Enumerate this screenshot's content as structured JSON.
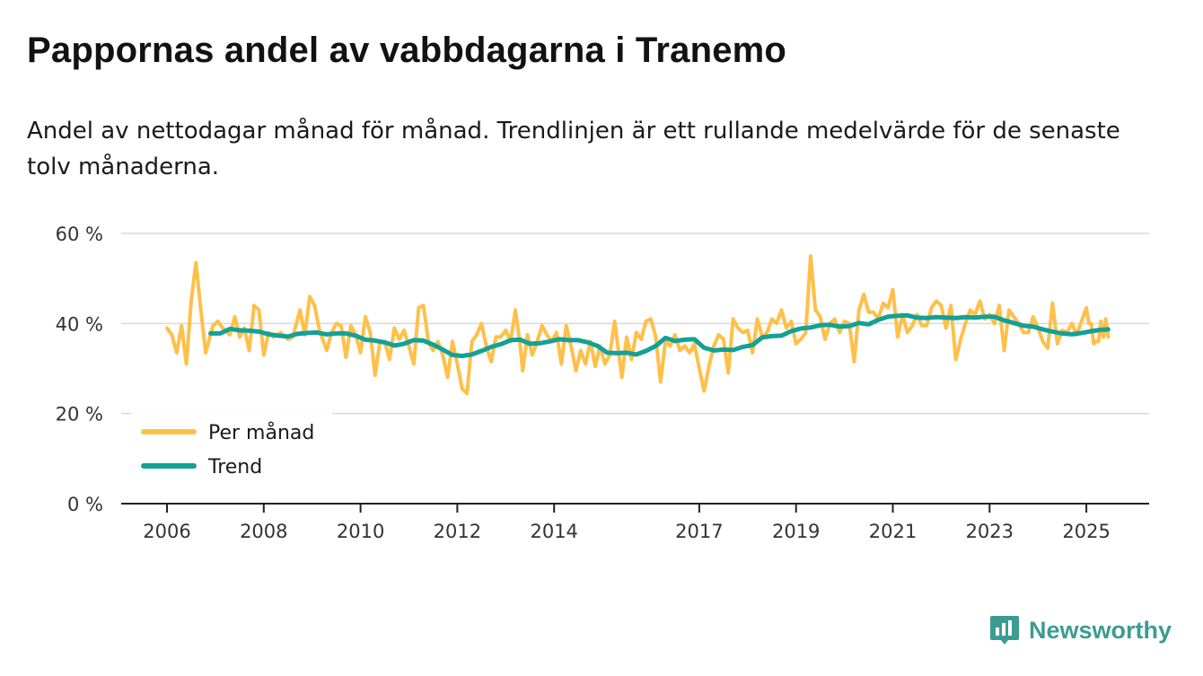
{
  "title": "Pappornas andel av vabbdagarna i Tranemo",
  "subtitle": "Andel av nettodagar månad för månad. Trendlinjen är ett rullande medelvärde för de senaste tolv månaderna.",
  "brand": {
    "name": "Newsworthy",
    "icon": "newsworthy-logo-icon",
    "color": "#3c9c92"
  },
  "colors": {
    "monthly": "#ffc04a",
    "trend": "#13a196",
    "grid": "#d9d9d9",
    "axis": "#222222"
  },
  "chart_data": {
    "type": "line",
    "title": "Pappornas andel av vabbdagarna i Tranemo",
    "xlabel": "",
    "ylabel": "",
    "xlim": [
      2005.95,
      2025.4
    ],
    "ylim": [
      0,
      60
    ],
    "y_ticks": [
      {
        "value": 0,
        "label": "0 %"
      },
      {
        "value": 20,
        "label": "20 %"
      },
      {
        "value": 40,
        "label": "40 %"
      },
      {
        "value": 60,
        "label": "60 %"
      }
    ],
    "x_ticks": [
      {
        "value": 2006,
        "label": "2006"
      },
      {
        "value": 2008,
        "label": "2008"
      },
      {
        "value": 2010,
        "label": "2010"
      },
      {
        "value": 2012,
        "label": "2012"
      },
      {
        "value": 2014,
        "label": "2014"
      },
      {
        "value": 2017,
        "label": "2017"
      },
      {
        "value": 2019,
        "label": "2019"
      },
      {
        "value": 2021,
        "label": "2021"
      },
      {
        "value": 2023,
        "label": "2023"
      },
      {
        "value": 2025,
        "label": "2025"
      }
    ],
    "grid": true,
    "legend_position": "bottom-left",
    "series": [
      {
        "name": "Per månad",
        "color": "#ffc04a",
        "points": [
          [
            2006.0,
            39
          ],
          [
            2006.1,
            37.5
          ],
          [
            2006.2,
            33.5
          ],
          [
            2006.3,
            39.5
          ],
          [
            2006.4,
            31
          ],
          [
            2006.5,
            45
          ],
          [
            2006.6,
            53.5
          ],
          [
            2006.7,
            43
          ],
          [
            2006.8,
            33.5
          ],
          [
            2006.95,
            39.5
          ],
          [
            2007.05,
            40.5
          ],
          [
            2007.15,
            39
          ],
          [
            2007.3,
            37.5
          ],
          [
            2007.4,
            41.5
          ],
          [
            2007.5,
            37
          ],
          [
            2007.6,
            39
          ],
          [
            2007.7,
            34
          ],
          [
            2007.8,
            44
          ],
          [
            2007.9,
            43
          ],
          [
            2008.0,
            33
          ],
          [
            2008.1,
            38
          ],
          [
            2008.2,
            37
          ],
          [
            2008.35,
            38
          ],
          [
            2008.5,
            36.5
          ],
          [
            2008.6,
            37
          ],
          [
            2008.75,
            43
          ],
          [
            2008.85,
            37.5
          ],
          [
            2008.95,
            46
          ],
          [
            2009.05,
            44
          ],
          [
            2009.15,
            38.5
          ],
          [
            2009.3,
            34
          ],
          [
            2009.4,
            38
          ],
          [
            2009.5,
            40
          ],
          [
            2009.6,
            39.5
          ],
          [
            2009.7,
            32.5
          ],
          [
            2009.8,
            39.5
          ],
          [
            2009.9,
            37.5
          ],
          [
            2010.0,
            33.5
          ],
          [
            2010.1,
            41.5
          ],
          [
            2010.2,
            38
          ],
          [
            2010.3,
            28.5
          ],
          [
            2010.4,
            36
          ],
          [
            2010.5,
            36
          ],
          [
            2010.6,
            32
          ],
          [
            2010.7,
            39
          ],
          [
            2010.8,
            36.5
          ],
          [
            2010.9,
            38.5
          ],
          [
            2011.0,
            35
          ],
          [
            2011.1,
            31
          ],
          [
            2011.2,
            43.5
          ],
          [
            2011.3,
            44
          ],
          [
            2011.4,
            36
          ],
          [
            2011.5,
            34
          ],
          [
            2011.6,
            36
          ],
          [
            2011.7,
            33
          ],
          [
            2011.8,
            28
          ],
          [
            2011.9,
            36
          ],
          [
            2012.0,
            31
          ],
          [
            2012.1,
            25.5
          ],
          [
            2012.2,
            24.5
          ],
          [
            2012.3,
            36
          ],
          [
            2012.4,
            37.5
          ],
          [
            2012.5,
            40
          ],
          [
            2012.6,
            35
          ],
          [
            2012.7,
            31.5
          ],
          [
            2012.8,
            37
          ],
          [
            2012.9,
            37
          ],
          [
            2013.0,
            38.5
          ],
          [
            2013.1,
            36
          ],
          [
            2013.2,
            43
          ],
          [
            2013.3,
            35
          ],
          [
            2013.35,
            29.5
          ],
          [
            2013.45,
            37.5
          ],
          [
            2013.55,
            33
          ],
          [
            2013.65,
            36
          ],
          [
            2013.75,
            39.5
          ],
          [
            2013.85,
            37.5
          ],
          [
            2013.95,
            36
          ],
          [
            2014.05,
            38
          ],
          [
            2014.15,
            31
          ],
          [
            2014.25,
            39.5
          ],
          [
            2014.35,
            35
          ],
          [
            2014.45,
            29.5
          ],
          [
            2014.55,
            34
          ],
          [
            2014.65,
            31
          ],
          [
            2014.75,
            36
          ],
          [
            2014.85,
            30.5
          ],
          [
            2014.95,
            35
          ],
          [
            2015.05,
            31
          ],
          [
            2015.15,
            33
          ],
          [
            2015.25,
            40.5
          ],
          [
            2015.4,
            28
          ],
          [
            2015.5,
            37
          ],
          [
            2015.6,
            32
          ],
          [
            2015.7,
            38
          ],
          [
            2015.8,
            36.5
          ],
          [
            2015.9,
            40.5
          ],
          [
            2016.0,
            41
          ],
          [
            2016.1,
            37
          ],
          [
            2016.2,
            27
          ],
          [
            2016.3,
            36
          ],
          [
            2016.4,
            35
          ],
          [
            2016.5,
            37.5
          ],
          [
            2016.6,
            34
          ],
          [
            2016.7,
            35
          ],
          [
            2016.8,
            33.5
          ],
          [
            2016.9,
            35.5
          ],
          [
            2017.0,
            30
          ],
          [
            2017.1,
            25
          ],
          [
            2017.2,
            30.5
          ],
          [
            2017.3,
            35
          ],
          [
            2017.4,
            37.5
          ],
          [
            2017.5,
            36.5
          ],
          [
            2017.6,
            29
          ],
          [
            2017.7,
            41
          ],
          [
            2017.8,
            39
          ],
          [
            2017.9,
            38
          ],
          [
            2018.0,
            38.5
          ],
          [
            2018.1,
            33.5
          ],
          [
            2018.2,
            41
          ],
          [
            2018.3,
            37
          ],
          [
            2018.4,
            38
          ],
          [
            2018.5,
            41
          ],
          [
            2018.6,
            40
          ],
          [
            2018.7,
            43
          ],
          [
            2018.8,
            39
          ],
          [
            2018.9,
            40.5
          ],
          [
            2019.0,
            35.5
          ],
          [
            2019.1,
            36.5
          ],
          [
            2019.2,
            38
          ],
          [
            2019.3,
            55
          ],
          [
            2019.4,
            43
          ],
          [
            2019.5,
            41.5
          ],
          [
            2019.6,
            36.5
          ],
          [
            2019.7,
            40
          ],
          [
            2019.8,
            41
          ],
          [
            2019.9,
            38
          ],
          [
            2020.0,
            40.5
          ],
          [
            2020.1,
            40
          ],
          [
            2020.2,
            31.5
          ],
          [
            2020.3,
            43
          ],
          [
            2020.4,
            46.5
          ],
          [
            2020.5,
            42.5
          ],
          [
            2020.6,
            42.5
          ],
          [
            2020.7,
            41
          ],
          [
            2020.8,
            44.5
          ],
          [
            2020.9,
            43.5
          ],
          [
            2021.0,
            47.5
          ],
          [
            2021.1,
            37
          ],
          [
            2021.2,
            42
          ],
          [
            2021.3,
            38
          ],
          [
            2021.4,
            39.5
          ],
          [
            2021.5,
            42
          ],
          [
            2021.6,
            39.5
          ],
          [
            2021.7,
            39.5
          ],
          [
            2021.8,
            43.5
          ],
          [
            2021.9,
            45
          ],
          [
            2022.0,
            44
          ],
          [
            2022.1,
            39
          ],
          [
            2022.2,
            44
          ],
          [
            2022.3,
            32
          ],
          [
            2022.4,
            36.5
          ],
          [
            2022.5,
            40
          ],
          [
            2022.6,
            43
          ],
          [
            2022.7,
            42
          ],
          [
            2022.8,
            45
          ],
          [
            2022.9,
            41
          ],
          [
            2023.0,
            42
          ],
          [
            2023.1,
            40
          ],
          [
            2023.2,
            44
          ],
          [
            2023.3,
            34
          ],
          [
            2023.4,
            43
          ],
          [
            2023.5,
            41.5
          ],
          [
            2023.6,
            40
          ],
          [
            2023.7,
            38
          ],
          [
            2023.8,
            38
          ],
          [
            2023.9,
            41.5
          ],
          [
            2024.0,
            39
          ],
          [
            2024.1,
            36
          ],
          [
            2024.2,
            34.5
          ],
          [
            2024.3,
            44.5
          ],
          [
            2024.4,
            35.5
          ],
          [
            2024.5,
            38.5
          ],
          [
            2024.6,
            38
          ],
          [
            2024.7,
            40
          ],
          [
            2024.8,
            37.5
          ],
          [
            2024.9,
            40.5
          ],
          [
            2025.0,
            43.5
          ],
          [
            2025.05,
            40
          ],
          [
            2025.1,
            40
          ],
          [
            2025.15,
            35.5
          ],
          [
            2025.2,
            36
          ],
          [
            2025.25,
            36
          ],
          [
            2025.3,
            40.5
          ],
          [
            2025.35,
            37
          ],
          [
            2025.4,
            41
          ],
          [
            2025.45,
            37
          ]
        ]
      },
      {
        "name": "Trend",
        "color": "#13a196",
        "points": [
          [
            2006.9,
            37.8
          ],
          [
            2007.1,
            37.8
          ],
          [
            2007.3,
            38.8
          ],
          [
            2007.5,
            38.5
          ],
          [
            2007.7,
            38.4
          ],
          [
            2007.9,
            38.2
          ],
          [
            2008.1,
            37.6
          ],
          [
            2008.3,
            37.3
          ],
          [
            2008.5,
            37.1
          ],
          [
            2008.7,
            37.7
          ],
          [
            2008.9,
            37.9
          ],
          [
            2009.1,
            38
          ],
          [
            2009.3,
            37.6
          ],
          [
            2009.5,
            37.8
          ],
          [
            2009.7,
            37.8
          ],
          [
            2009.9,
            37.3
          ],
          [
            2010.1,
            36.4
          ],
          [
            2010.3,
            36.2
          ],
          [
            2010.5,
            35.8
          ],
          [
            2010.7,
            35.1
          ],
          [
            2010.9,
            35.5
          ],
          [
            2011.1,
            36.3
          ],
          [
            2011.3,
            36.2
          ],
          [
            2011.5,
            35.3
          ],
          [
            2011.7,
            34.2
          ],
          [
            2011.9,
            33
          ],
          [
            2012.1,
            32.8
          ],
          [
            2012.3,
            33.1
          ],
          [
            2012.5,
            33.9
          ],
          [
            2012.7,
            34.8
          ],
          [
            2012.9,
            35.4
          ],
          [
            2013.1,
            36.3
          ],
          [
            2013.3,
            36.4
          ],
          [
            2013.5,
            35.5
          ],
          [
            2013.7,
            35.6
          ],
          [
            2013.9,
            36
          ],
          [
            2014.1,
            36.5
          ],
          [
            2014.3,
            36.3
          ],
          [
            2014.5,
            36.3
          ],
          [
            2014.7,
            35.8
          ],
          [
            2014.9,
            35
          ],
          [
            2015.1,
            33.5
          ],
          [
            2015.3,
            33.4
          ],
          [
            2015.5,
            33.5
          ],
          [
            2015.7,
            33.1
          ],
          [
            2015.9,
            33.9
          ],
          [
            2016.1,
            35
          ],
          [
            2016.3,
            36.8
          ],
          [
            2016.5,
            36.1
          ],
          [
            2016.7,
            36.4
          ],
          [
            2016.9,
            36.5
          ],
          [
            2017.1,
            34.6
          ],
          [
            2017.3,
            34
          ],
          [
            2017.5,
            34.2
          ],
          [
            2017.7,
            34.1
          ],
          [
            2017.9,
            34.8
          ],
          [
            2018.1,
            35.2
          ],
          [
            2018.3,
            36.9
          ],
          [
            2018.5,
            37.2
          ],
          [
            2018.7,
            37.3
          ],
          [
            2018.9,
            38.3
          ],
          [
            2019.1,
            38.9
          ],
          [
            2019.3,
            39.1
          ],
          [
            2019.5,
            39.6
          ],
          [
            2019.7,
            39.7
          ],
          [
            2019.9,
            39.3
          ],
          [
            2020.1,
            39.4
          ],
          [
            2020.3,
            40.1
          ],
          [
            2020.5,
            39.8
          ],
          [
            2020.7,
            40.8
          ],
          [
            2020.9,
            41.5
          ],
          [
            2021.1,
            41.7
          ],
          [
            2021.3,
            41.8
          ],
          [
            2021.5,
            41.3
          ],
          [
            2021.7,
            41.2
          ],
          [
            2021.9,
            41.4
          ],
          [
            2022.1,
            41.3
          ],
          [
            2022.3,
            41.2
          ],
          [
            2022.5,
            41.4
          ],
          [
            2022.7,
            41.3
          ],
          [
            2022.9,
            41.5
          ],
          [
            2023.1,
            41.5
          ],
          [
            2023.3,
            40.7
          ],
          [
            2023.5,
            40.1
          ],
          [
            2023.7,
            39.5
          ],
          [
            2023.9,
            39.3
          ],
          [
            2024.1,
            38.7
          ],
          [
            2024.3,
            38.2
          ],
          [
            2024.5,
            37.8
          ],
          [
            2024.7,
            37.6
          ],
          [
            2024.9,
            37.9
          ],
          [
            2025.1,
            38.3
          ],
          [
            2025.3,
            38.6
          ],
          [
            2025.45,
            38.7
          ]
        ]
      }
    ]
  }
}
